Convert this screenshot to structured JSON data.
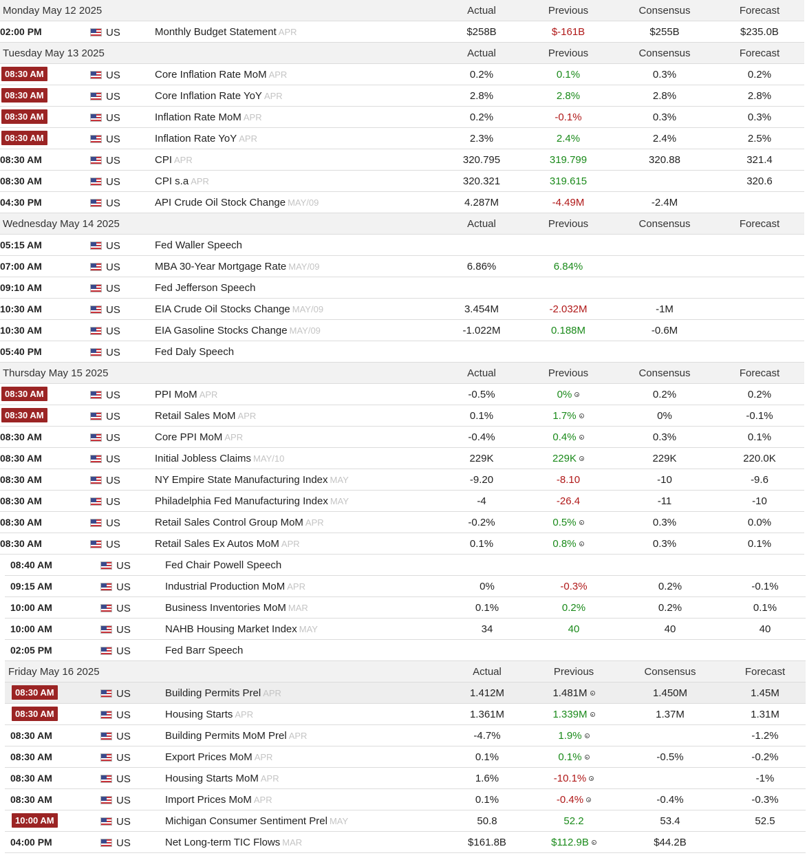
{
  "columns": {
    "actual": "Actual",
    "previous": "Previous",
    "consensus": "Consensus",
    "forecast": "Forecast"
  },
  "days": [
    {
      "date": "Monday May 12 2025",
      "events": [
        {
          "time": "02:00 PM",
          "badge": false,
          "country": "US",
          "name": "Monthly Budget Statement",
          "ref": "APR",
          "actual": "$258B",
          "previous": "$-161B",
          "prevColor": "neg",
          "prevRev": false,
          "consensus": "$255B",
          "forecast": "$235.0B"
        }
      ]
    },
    {
      "date": "Tuesday May 13 2025",
      "events": [
        {
          "time": "08:30 AM",
          "badge": true,
          "country": "US",
          "name": "Core Inflation Rate MoM",
          "ref": "APR",
          "actual": "0.2%",
          "previous": "0.1%",
          "prevColor": "pos",
          "prevRev": false,
          "consensus": "0.3%",
          "forecast": "0.2%"
        },
        {
          "time": "08:30 AM",
          "badge": true,
          "country": "US",
          "name": "Core Inflation Rate YoY",
          "ref": "APR",
          "actual": "2.8%",
          "previous": "2.8%",
          "prevColor": "pos",
          "prevRev": false,
          "consensus": "2.8%",
          "forecast": "2.8%"
        },
        {
          "time": "08:30 AM",
          "badge": true,
          "country": "US",
          "name": "Inflation Rate MoM",
          "ref": "APR",
          "actual": "0.2%",
          "previous": "-0.1%",
          "prevColor": "neg",
          "prevRev": false,
          "consensus": "0.3%",
          "forecast": "0.3%"
        },
        {
          "time": "08:30 AM",
          "badge": true,
          "country": "US",
          "name": "Inflation Rate YoY",
          "ref": "APR",
          "actual": "2.3%",
          "previous": "2.4%",
          "prevColor": "pos",
          "prevRev": false,
          "consensus": "2.4%",
          "forecast": "2.5%"
        },
        {
          "time": "08:30 AM",
          "badge": false,
          "country": "US",
          "name": "CPI",
          "ref": "APR",
          "actual": "320.795",
          "previous": "319.799",
          "prevColor": "pos",
          "prevRev": false,
          "consensus": "320.88",
          "forecast": "321.4"
        },
        {
          "time": "08:30 AM",
          "badge": false,
          "country": "US",
          "name": "CPI s.a",
          "ref": "APR",
          "actual": "320.321",
          "previous": "319.615",
          "prevColor": "pos",
          "prevRev": false,
          "consensus": "",
          "forecast": "320.6"
        },
        {
          "time": "04:30 PM",
          "badge": false,
          "country": "US",
          "name": "API Crude Oil Stock Change",
          "ref": "MAY/09",
          "actual": "4.287M",
          "previous": "-4.49M",
          "prevColor": "neg",
          "prevRev": false,
          "consensus": "-2.4M",
          "forecast": ""
        }
      ]
    },
    {
      "date": "Wednesday May 14 2025",
      "events": [
        {
          "time": "05:15 AM",
          "badge": false,
          "country": "US",
          "name": "Fed Waller Speech",
          "ref": "",
          "actual": "",
          "previous": "",
          "prevColor": "",
          "prevRev": false,
          "consensus": "",
          "forecast": ""
        },
        {
          "time": "07:00 AM",
          "badge": false,
          "country": "US",
          "name": "MBA 30-Year Mortgage Rate",
          "ref": "MAY/09",
          "actual": "6.86%",
          "previous": "6.84%",
          "prevColor": "pos",
          "prevRev": false,
          "consensus": "",
          "forecast": ""
        },
        {
          "time": "09:10 AM",
          "badge": false,
          "country": "US",
          "name": "Fed Jefferson Speech",
          "ref": "",
          "actual": "",
          "previous": "",
          "prevColor": "",
          "prevRev": false,
          "consensus": "",
          "forecast": ""
        },
        {
          "time": "10:30 AM",
          "badge": false,
          "country": "US",
          "name": "EIA Crude Oil Stocks Change",
          "ref": "MAY/09",
          "actual": "3.454M",
          "previous": "-2.032M",
          "prevColor": "neg",
          "prevRev": false,
          "consensus": "-1M",
          "forecast": ""
        },
        {
          "time": "10:30 AM",
          "badge": false,
          "country": "US",
          "name": "EIA Gasoline Stocks Change",
          "ref": "MAY/09",
          "actual": "-1.022M",
          "previous": "0.188M",
          "prevColor": "pos",
          "prevRev": false,
          "consensus": "-0.6M",
          "forecast": ""
        },
        {
          "time": "05:40 PM",
          "badge": false,
          "country": "US",
          "name": "Fed Daly Speech",
          "ref": "",
          "actual": "",
          "previous": "",
          "prevColor": "",
          "prevRev": false,
          "consensus": "",
          "forecast": ""
        }
      ]
    },
    {
      "date": "Thursday May 15 2025",
      "events": [
        {
          "time": "08:30 AM",
          "badge": true,
          "country": "US",
          "name": "PPI MoM",
          "ref": "APR",
          "actual": "-0.5%",
          "previous": "0%",
          "prevColor": "pos",
          "prevRev": true,
          "consensus": "0.2%",
          "forecast": "0.2%"
        },
        {
          "time": "08:30 AM",
          "badge": true,
          "country": "US",
          "name": "Retail Sales MoM",
          "ref": "APR",
          "actual": "0.1%",
          "previous": "1.7%",
          "prevColor": "pos",
          "prevRev": true,
          "consensus": "0%",
          "forecast": "-0.1%"
        },
        {
          "time": "08:30 AM",
          "badge": false,
          "country": "US",
          "name": "Core PPI MoM",
          "ref": "APR",
          "actual": "-0.4%",
          "previous": "0.4%",
          "prevColor": "pos",
          "prevRev": true,
          "consensus": "0.3%",
          "forecast": "0.1%"
        },
        {
          "time": "08:30 AM",
          "badge": false,
          "country": "US",
          "name": "Initial Jobless Claims",
          "ref": "MAY/10",
          "actual": "229K",
          "previous": "229K",
          "prevColor": "pos",
          "prevRev": true,
          "consensus": "229K",
          "forecast": "220.0K"
        },
        {
          "time": "08:30 AM",
          "badge": false,
          "country": "US",
          "name": "NY Empire State Manufacturing Index",
          "ref": "MAY",
          "actual": "-9.20",
          "previous": "-8.10",
          "prevColor": "neg",
          "prevRev": false,
          "consensus": "-10",
          "forecast": "-9.6"
        },
        {
          "time": "08:30 AM",
          "badge": false,
          "country": "US",
          "name": "Philadelphia Fed Manufacturing Index",
          "ref": "MAY",
          "actual": "-4",
          "previous": "-26.4",
          "prevColor": "neg",
          "prevRev": false,
          "consensus": "-11",
          "forecast": "-10"
        },
        {
          "time": "08:30 AM",
          "badge": false,
          "country": "US",
          "name": "Retail Sales Control Group MoM",
          "ref": "APR",
          "actual": "-0.2%",
          "previous": "0.5%",
          "prevColor": "pos",
          "prevRev": true,
          "consensus": "0.3%",
          "forecast": "0.0%"
        },
        {
          "time": "08:30 AM",
          "badge": false,
          "country": "US",
          "name": "Retail Sales Ex Autos MoM",
          "ref": "APR",
          "actual": "0.1%",
          "previous": "0.8%",
          "prevColor": "pos",
          "prevRev": true,
          "consensus": "0.3%",
          "forecast": "0.1%"
        }
      ]
    },
    {
      "date": "",
      "shifted": true,
      "events": [
        {
          "time": "08:40 AM",
          "badge": false,
          "country": "US",
          "name": "Fed Chair Powell Speech",
          "ref": "",
          "actual": "",
          "previous": "",
          "prevColor": "",
          "prevRev": false,
          "consensus": "",
          "forecast": ""
        },
        {
          "time": "09:15 AM",
          "badge": false,
          "country": "US",
          "name": "Industrial Production MoM",
          "ref": "APR",
          "actual": "0%",
          "previous": "-0.3%",
          "prevColor": "neg",
          "prevRev": false,
          "consensus": "0.2%",
          "forecast": "-0.1%"
        },
        {
          "time": "10:00 AM",
          "badge": false,
          "country": "US",
          "name": "Business Inventories MoM",
          "ref": "MAR",
          "actual": "0.1%",
          "previous": "0.2%",
          "prevColor": "pos",
          "prevRev": false,
          "consensus": "0.2%",
          "forecast": "0.1%"
        },
        {
          "time": "10:00 AM",
          "badge": false,
          "country": "US",
          "name": "NAHB Housing Market Index",
          "ref": "MAY",
          "actual": "34",
          "previous": "40",
          "prevColor": "pos",
          "prevRev": false,
          "consensus": "40",
          "forecast": "40"
        },
        {
          "time": "02:05 PM",
          "badge": false,
          "country": "US",
          "name": "Fed Barr Speech",
          "ref": "",
          "actual": "",
          "previous": "",
          "prevColor": "",
          "prevRev": false,
          "consensus": "",
          "forecast": ""
        }
      ]
    },
    {
      "date": "Friday May 16 2025",
      "shifted": true,
      "events": [
        {
          "time": "08:30 AM",
          "badge": true,
          "highlight": true,
          "country": "US",
          "name": "Building Permits Prel",
          "ref": "APR",
          "actual": "1.412M",
          "previous": "1.481M",
          "prevColor": "",
          "prevRev": true,
          "consensus": "1.450M",
          "forecast": "1.45M"
        },
        {
          "time": "08:30 AM",
          "badge": true,
          "country": "US",
          "name": "Housing Starts",
          "ref": "APR",
          "actual": "1.361M",
          "previous": "1.339M",
          "prevColor": "pos",
          "prevRev": true,
          "consensus": "1.37M",
          "forecast": "1.31M"
        },
        {
          "time": "08:30 AM",
          "badge": false,
          "country": "US",
          "name": "Building Permits MoM Prel",
          "ref": "APR",
          "actual": "-4.7%",
          "previous": "1.9%",
          "prevColor": "pos",
          "prevRev": true,
          "consensus": "",
          "forecast": "-1.2%"
        },
        {
          "time": "08:30 AM",
          "badge": false,
          "country": "US",
          "name": "Export Prices MoM",
          "ref": "APR",
          "actual": "0.1%",
          "previous": "0.1%",
          "prevColor": "pos",
          "prevRev": true,
          "consensus": "-0.5%",
          "forecast": "-0.2%"
        },
        {
          "time": "08:30 AM",
          "badge": false,
          "country": "US",
          "name": "Housing Starts MoM",
          "ref": "APR",
          "actual": "1.6%",
          "previous": "-10.1%",
          "prevColor": "neg",
          "prevRev": true,
          "consensus": "",
          "forecast": "-1%"
        },
        {
          "time": "08:30 AM",
          "badge": false,
          "country": "US",
          "name": "Import Prices MoM",
          "ref": "APR",
          "actual": "0.1%",
          "previous": "-0.4%",
          "prevColor": "neg",
          "prevRev": true,
          "consensus": "-0.4%",
          "forecast": "-0.3%"
        },
        {
          "time": "10:00 AM",
          "badge": true,
          "country": "US",
          "name": "Michigan Consumer Sentiment Prel",
          "ref": "MAY",
          "actual": "50.8",
          "previous": "52.2",
          "prevColor": "pos",
          "prevRev": false,
          "consensus": "53.4",
          "forecast": "52.5"
        },
        {
          "time": "04:00 PM",
          "badge": false,
          "country": "US",
          "name": "Net Long-term TIC Flows",
          "ref": "MAR",
          "actual": "$161.8B",
          "previous": "$112.9B",
          "prevColor": "pos",
          "prevRev": true,
          "consensus": "$44.2B",
          "forecast": ""
        }
      ]
    }
  ]
}
